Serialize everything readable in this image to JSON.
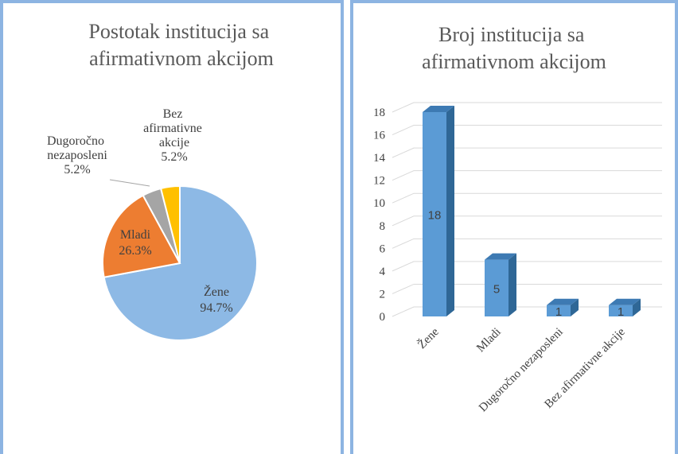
{
  "chart_data": [
    {
      "type": "pie",
      "title": "Postotak institucija sa afirmativnom akcijom",
      "categories": [
        "Žene",
        "Mladi",
        "Dugoročno nezaposleni",
        "Bez afirmativne akcije"
      ],
      "values": [
        94.7,
        26.3,
        5.2,
        5.2
      ],
      "value_labels": [
        "94.7%",
        "26.3%",
        "5.2%",
        "5.2%"
      ],
      "colors": [
        "#8db9e5",
        "#ed7d31",
        "#a5a5a5",
        "#ffc000"
      ]
    },
    {
      "type": "bar3d",
      "title": "Broj institucija sa afirmativnom akcijom",
      "categories": [
        "Žene",
        "Mladi",
        "Dugoročno nezaposleni",
        "Bez afirmativne akcije"
      ],
      "values": [
        18,
        5,
        1,
        1
      ],
      "color": "#5b9bd5",
      "ylim": [
        0,
        18
      ],
      "yticks": [
        0,
        2,
        4,
        6,
        8,
        10,
        12,
        14,
        16,
        18
      ],
      "grid": true
    }
  ]
}
